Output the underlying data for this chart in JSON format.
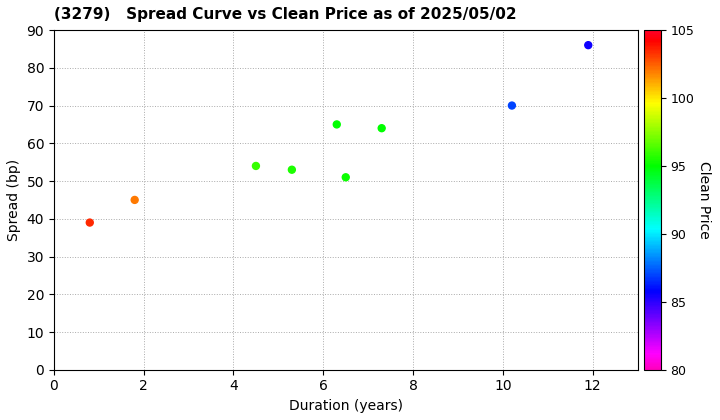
{
  "title": "(3279)   Spread Curve vs Clean Price as of 2025/05/02",
  "xlabel": "Duration (years)",
  "ylabel": "Spread (bp)",
  "colorbar_label": "Clean Price",
  "xlim": [
    0,
    13
  ],
  "ylim": [
    0,
    90
  ],
  "xticks": [
    0,
    2,
    4,
    6,
    8,
    10,
    12
  ],
  "yticks": [
    0,
    10,
    20,
    30,
    40,
    50,
    60,
    70,
    80,
    90
  ],
  "clim": [
    80,
    105
  ],
  "points": [
    {
      "duration": 0.8,
      "spread": 39,
      "price": 103.5
    },
    {
      "duration": 1.8,
      "spread": 45,
      "price": 102.0
    },
    {
      "duration": 4.5,
      "spread": 54,
      "price": 96.0
    },
    {
      "duration": 5.3,
      "spread": 53,
      "price": 95.5
    },
    {
      "duration": 6.3,
      "spread": 65,
      "price": 95.0
    },
    {
      "duration": 6.5,
      "spread": 51,
      "price": 95.2
    },
    {
      "duration": 7.3,
      "spread": 64,
      "price": 95.0
    },
    {
      "duration": 10.2,
      "spread": 70,
      "price": 87.0
    },
    {
      "duration": 11.9,
      "spread": 86,
      "price": 85.5
    }
  ],
  "cmap": "gist_rainbow_r",
  "marker_size": 25,
  "background_color": "#ffffff",
  "grid_color": "#aaaaaa",
  "grid_linestyle": "dotted",
  "title_fontsize": 11,
  "axis_fontsize": 10,
  "colorbar_tick_fontsize": 9,
  "colorbar_ticks": [
    80,
    85,
    90,
    95,
    100,
    105
  ],
  "figure_width": 7.2,
  "figure_height": 4.2,
  "figure_dpi": 100
}
